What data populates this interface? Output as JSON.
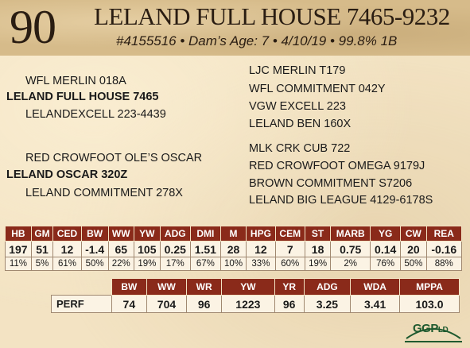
{
  "header": {
    "lot_number": "90",
    "title": "LELAND FULL HOUSE 7465-9232",
    "subtitle": "#4155516 • Dam’s Age: 7 • 4/10/19 • 99.8% 1B"
  },
  "pedigree": {
    "sire_side": {
      "sire_sire": "WFL MERLIN 018A",
      "sire": "LELAND FULL HOUSE 7465",
      "sire_dam": "LELANDEXCELL 223-4439"
    },
    "dam_side": {
      "dam_sire": "RED CROWFOOT OLE’S OSCAR",
      "dam": "LELAND OSCAR 320Z",
      "dam_dam": "LELAND COMMITMENT 278X"
    },
    "right_column": [
      "LJC MERLIN T179",
      "WFL COMMITMENT 042Y",
      "VGW EXCELL 223",
      "LELAND BEN 160X",
      "MLK CRK CUB 722",
      "RED CROWFOOT OMEGA 9179J",
      "BROWN COMMITMENT S7206",
      "LELAND BIG LEAGUE 4129-6178S"
    ]
  },
  "epd_table": {
    "headers": [
      "HB",
      "GM",
      "CED",
      "BW",
      "WW",
      "YW",
      "ADG",
      "DMI",
      "M",
      "HPG",
      "CEM",
      "ST",
      "MARB",
      "YG",
      "CW",
      "REA"
    ],
    "values": [
      "197",
      "51",
      "12",
      "-1.4",
      "65",
      "105",
      "0.25",
      "1.51",
      "28",
      "12",
      "7",
      "18",
      "0.75",
      "0.14",
      "20",
      "-0.16"
    ],
    "percentiles": [
      "11%",
      "5%",
      "61%",
      "50%",
      "22%",
      "19%",
      "17%",
      "67%",
      "10%",
      "33%",
      "60%",
      "19%",
      "2%",
      "76%",
      "50%",
      "88%"
    ]
  },
  "perf_table": {
    "headers": [
      "BW",
      "WW",
      "WR",
      "YW",
      "YR",
      "ADG",
      "WDA",
      "MPPA"
    ],
    "row_label": "PERF",
    "values": [
      "74",
      "704",
      "96",
      "1223",
      "96",
      "3.25",
      "3.41",
      "103.0"
    ]
  },
  "logo": {
    "text": "GGP",
    "suffix": "LD",
    "color": "#1f5a2f"
  }
}
